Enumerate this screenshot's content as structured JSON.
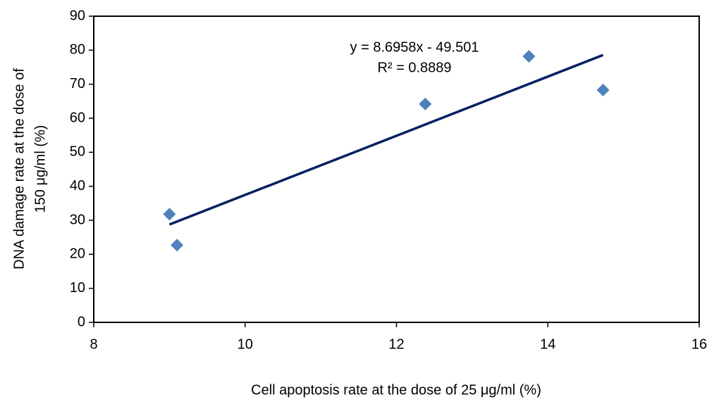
{
  "chart_data": {
    "type": "scatter",
    "x_label": "Cell apoptosis rate at the dose of 25 μg/ml (%)",
    "y_label": [
      "DNA damage rate at the dose of",
      "150 μg/ml (%)"
    ],
    "x": [
      9.0,
      9.1,
      12.38,
      13.75,
      14.73
    ],
    "values": [
      31.8,
      22.7,
      64.2,
      78.2,
      68.3
    ],
    "color": "#4f81bd",
    "xlim": [
      8,
      16
    ],
    "xticks": [
      8,
      10,
      12,
      14,
      16
    ],
    "ylim": [
      0,
      90
    ],
    "yticks": [
      0,
      10,
      20,
      30,
      40,
      50,
      60,
      70,
      80,
      90
    ],
    "trendline": {
      "label": "y = 8.6958x - 49.501",
      "r2_label": "R² = 0.8889",
      "slope": 8.6958,
      "intercept": -49.501,
      "color": "#002060"
    }
  }
}
